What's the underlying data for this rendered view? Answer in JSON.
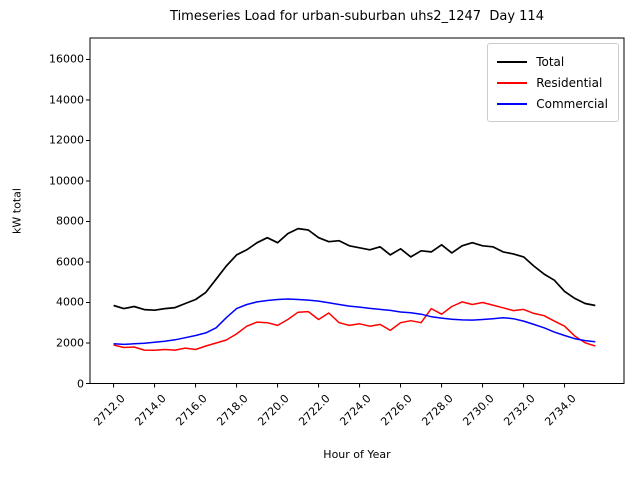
{
  "window": {
    "background": "#ffffff"
  },
  "chart_data": {
    "type": "line",
    "title": "Timeseries Load for urban-suburban uhs2_1247  Day 114",
    "xlabel": "Hour of Year",
    "ylabel": "kW total",
    "grid": false,
    "legend_position": "upper right",
    "xlim": [
      2710.85,
      2736.9
    ],
    "ylim": [
      0,
      17060
    ],
    "x_ticks": [
      2712,
      2714,
      2716,
      2718,
      2720,
      2722,
      2724,
      2726,
      2728,
      2730,
      2732,
      2734
    ],
    "x_tick_labels": [
      "2712.0",
      "2714.0",
      "2716.0",
      "2718.0",
      "2720.0",
      "2722.0",
      "2724.0",
      "2726.0",
      "2728.0",
      "2730.0",
      "2732.0",
      "2734.0"
    ],
    "y_ticks": [
      0,
      2000,
      4000,
      6000,
      8000,
      10000,
      12000,
      14000,
      16000
    ],
    "y_tick_labels": [
      "0",
      "2000",
      "4000",
      "6000",
      "8000",
      "10000",
      "12000",
      "14000",
      "16000"
    ],
    "x": [
      2712.0,
      2712.5,
      2713.0,
      2713.5,
      2714.0,
      2714.5,
      2715.0,
      2715.5,
      2716.0,
      2716.5,
      2717.0,
      2717.5,
      2718.0,
      2718.5,
      2719.0,
      2719.5,
      2720.0,
      2720.5,
      2721.0,
      2721.5,
      2722.0,
      2722.5,
      2723.0,
      2723.5,
      2724.0,
      2724.5,
      2725.0,
      2725.5,
      2726.0,
      2726.5,
      2727.0,
      2727.5,
      2728.0,
      2728.5,
      2729.0,
      2729.5,
      2730.0,
      2730.5,
      2731.0,
      2731.5,
      2732.0,
      2732.5,
      2733.0,
      2733.5,
      2734.0,
      2734.5,
      2735.0,
      2735.5
    ],
    "series": [
      {
        "name": "Total",
        "color": "#000000",
        "stroke_width": 1.7,
        "values": [
          3850,
          3700,
          3800,
          3650,
          3620,
          3700,
          3750,
          3950,
          4150,
          4500,
          5150,
          5800,
          6350,
          6600,
          6950,
          7200,
          6950,
          7400,
          7650,
          7580,
          7200,
          7000,
          7050,
          6800,
          6700,
          6600,
          6750,
          6350,
          6650,
          6250,
          6550,
          6500,
          6850,
          6450,
          6800,
          6950,
          6800,
          6750,
          6500,
          6400,
          6250,
          5800,
          5400,
          5100,
          4550,
          4200,
          3950,
          3850
        ]
      },
      {
        "name": "Residential",
        "color": "#ff0000",
        "stroke_width": 1.5,
        "values": [
          1900,
          1780,
          1800,
          1650,
          1640,
          1680,
          1650,
          1750,
          1680,
          1850,
          2000,
          2150,
          2450,
          2830,
          3030,
          3000,
          2870,
          3160,
          3520,
          3550,
          3160,
          3480,
          3000,
          2870,
          2950,
          2830,
          2920,
          2620,
          3000,
          3100,
          3000,
          3700,
          3420,
          3800,
          4030,
          3900,
          4000,
          3870,
          3740,
          3600,
          3660,
          3460,
          3350,
          3080,
          2830,
          2340,
          2010,
          1850
        ]
      },
      {
        "name": "Commercial",
        "color": "#0000ff",
        "stroke_width": 1.5,
        "values": [
          1960,
          1930,
          1960,
          1990,
          2040,
          2090,
          2160,
          2260,
          2370,
          2500,
          2750,
          3250,
          3700,
          3900,
          4030,
          4100,
          4150,
          4170,
          4150,
          4120,
          4070,
          3990,
          3900,
          3820,
          3770,
          3710,
          3660,
          3610,
          3530,
          3490,
          3420,
          3300,
          3230,
          3170,
          3140,
          3130,
          3160,
          3200,
          3250,
          3200,
          3080,
          2920,
          2750,
          2540,
          2370,
          2210,
          2120,
          2060
        ]
      }
    ]
  }
}
